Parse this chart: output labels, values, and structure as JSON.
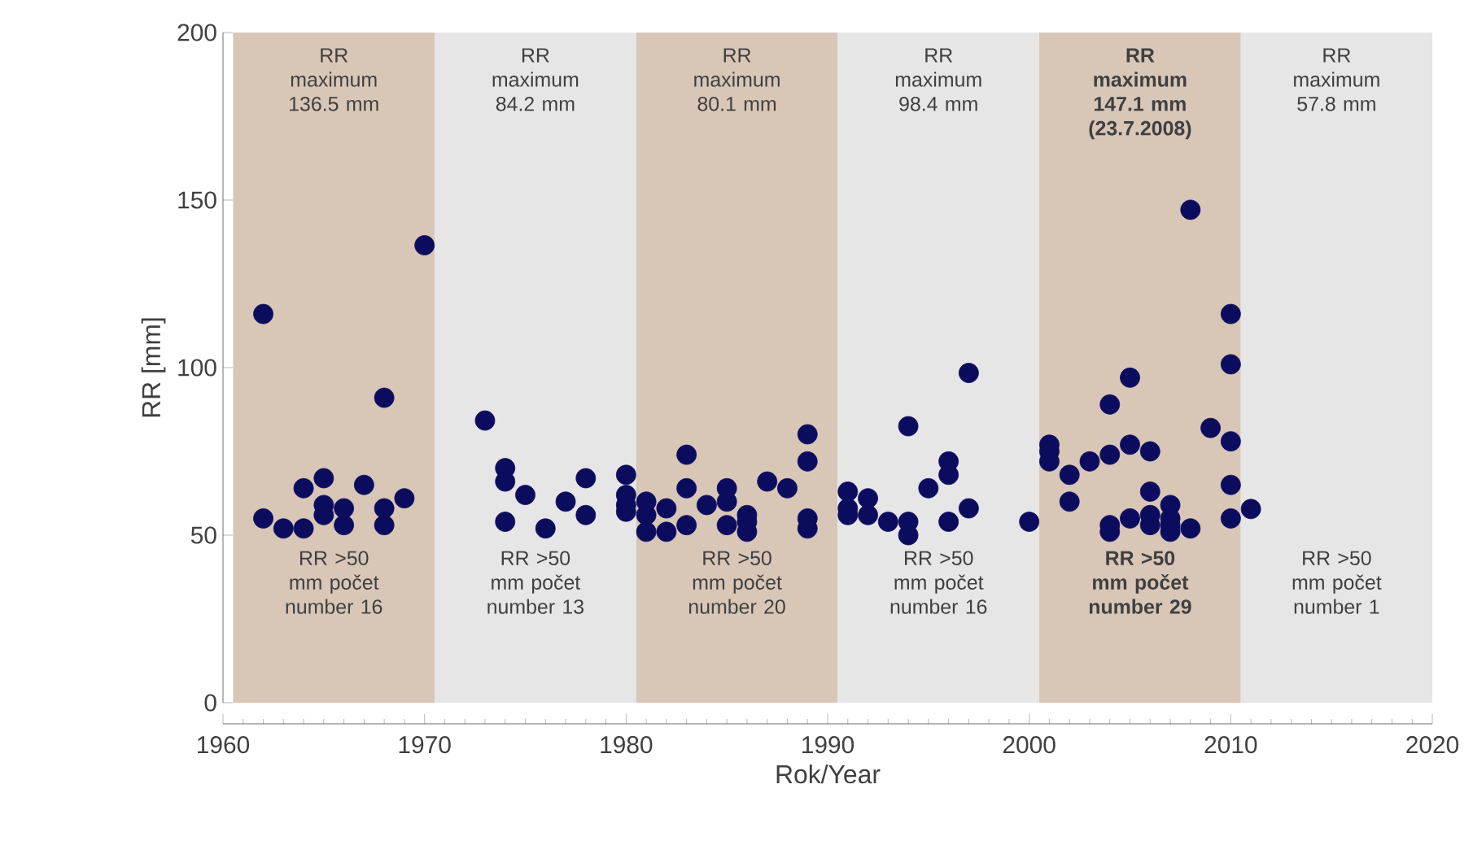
{
  "chart_data": {
    "type": "scatter",
    "xlabel": "Rok/Year",
    "ylabel": "RR [mm]",
    "xlim": [
      1960,
      2020
    ],
    "ylim": [
      0,
      200
    ],
    "xticks": [
      1960,
      1970,
      1980,
      1990,
      2000,
      2010,
      2020
    ],
    "yticks": [
      0,
      50,
      100,
      150,
      200
    ],
    "marker": "circle",
    "series": [
      {
        "color": "#0c0c5e",
        "x": [
          1962,
          1962,
          1963,
          1964,
          1964,
          1965,
          1965,
          1965,
          1966,
          1966,
          1967,
          1968,
          1968,
          1968,
          1969,
          1970,
          1973,
          1974,
          1974,
          1974,
          1975,
          1976,
          1977,
          1978,
          1978,
          1980,
          1980,
          1980,
          1980,
          1981,
          1981,
          1981,
          1982,
          1982,
          1983,
          1983,
          1983,
          1984,
          1985,
          1985,
          1985,
          1986,
          1986,
          1986,
          1987,
          1988,
          1989,
          1989,
          1989,
          1989,
          1991,
          1991,
          1991,
          1992,
          1992,
          1993,
          1994,
          1994,
          1994,
          1995,
          1996,
          1996,
          1996,
          1997,
          1997,
          2000,
          2001,
          2001,
          2001,
          2002,
          2002,
          2003,
          2004,
          2004,
          2004,
          2004,
          2005,
          2005,
          2005,
          2006,
          2006,
          2006,
          2006,
          2007,
          2007,
          2007,
          2007,
          2008,
          2008,
          2009,
          2010,
          2010,
          2010,
          2010,
          2010,
          2011
        ],
        "values": [
          116,
          55,
          52,
          52,
          64,
          67,
          59,
          56,
          58,
          53,
          65,
          91,
          58,
          53,
          61,
          136.5,
          84.2,
          70,
          66,
          54,
          62,
          52,
          60,
          67,
          56,
          68,
          62,
          59,
          57,
          56,
          51,
          60,
          58,
          51,
          74,
          64,
          53,
          59,
          64,
          60,
          53,
          54,
          51,
          56,
          66,
          64,
          80.1,
          72,
          55,
          52,
          63,
          58,
          56,
          61,
          56,
          54,
          82.5,
          54,
          50,
          64,
          72,
          68,
          54,
          98.4,
          58,
          54,
          77,
          75,
          72,
          68,
          60,
          72,
          89,
          74,
          51,
          53,
          97,
          77,
          55,
          75,
          63,
          53,
          56,
          59,
          55,
          51,
          53,
          147.1,
          52,
          82,
          116,
          101,
          78,
          65,
          55,
          57.8
        ]
      }
    ],
    "bands": [
      {
        "axis": "x",
        "from": 1960.5,
        "to": 1970.5,
        "color": "#d8c6b7",
        "label": "RR maximum 136.5 mm"
      },
      {
        "axis": "x",
        "from": 1970.5,
        "to": 1980.5,
        "color": "#e6e6e6",
        "label": "RR maximum 84.2 mm"
      },
      {
        "axis": "x",
        "from": 1980.5,
        "to": 1990.5,
        "color": "#d8c6b7",
        "label": "RR maximum 80.1 mm"
      },
      {
        "axis": "x",
        "from": 1990.5,
        "to": 2000.5,
        "color": "#e6e6e6",
        "label": "RR maximum 98.4 mm"
      },
      {
        "axis": "x",
        "from": 2000.5,
        "to": 2010.5,
        "color": "#d8c6b7",
        "label": "**RR maximum 147.1 mm (23.7.2008)**"
      },
      {
        "axis": "x",
        "from": 2010.5,
        "to": 2020,
        "color": "#e6e6e6",
        "label": "RR maximum 57.8 mm"
      }
    ],
    "annotations": [
      "RR >50 mm počet number 16",
      "RR >50 mm počet number 13",
      "RR >50 mm počet number 20",
      "RR >50 mm počet number 16",
      "**RR >50 mm počet number 29**",
      "RR >50 mm počet number 1"
    ]
  }
}
